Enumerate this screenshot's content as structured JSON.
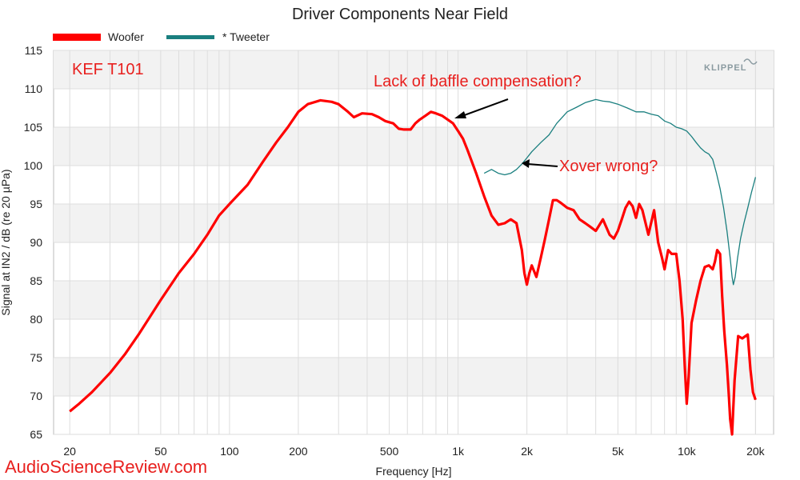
{
  "chart_data": {
    "type": "line",
    "title": "Driver Components Near Field",
    "xlabel": "Frequency [Hz]",
    "ylabel": "Signal at IN2 / dB (re 20 µPa)",
    "xscale": "log",
    "xlim": [
      17,
      24000
    ],
    "ylim": [
      65,
      115
    ],
    "xticks": [
      {
        "value": 20,
        "label": "20"
      },
      {
        "value": 50,
        "label": "50"
      },
      {
        "value": 100,
        "label": "100"
      },
      {
        "value": 200,
        "label": "200"
      },
      {
        "value": 500,
        "label": "500"
      },
      {
        "value": 1000,
        "label": "1k"
      },
      {
        "value": 2000,
        "label": "2k"
      },
      {
        "value": 5000,
        "label": "5k"
      },
      {
        "value": 10000,
        "label": "10k"
      },
      {
        "value": 20000,
        "label": "20k"
      }
    ],
    "yticks": [
      65,
      70,
      75,
      80,
      85,
      90,
      95,
      100,
      105,
      110,
      115
    ],
    "grid": true,
    "legend_position": "top-left",
    "series": [
      {
        "name": "Woofer",
        "color": "#ff0000",
        "x": [
          20,
          22,
          25,
          30,
          35,
          40,
          50,
          60,
          70,
          80,
          90,
          100,
          120,
          140,
          160,
          180,
          200,
          220,
          250,
          280,
          300,
          330,
          350,
          380,
          420,
          450,
          480,
          520,
          550,
          580,
          620,
          650,
          680,
          720,
          760,
          800,
          850,
          900,
          950,
          1000,
          1050,
          1100,
          1200,
          1300,
          1400,
          1500,
          1600,
          1700,
          1800,
          1900,
          1950,
          2000,
          2050,
          2100,
          2200,
          2300,
          2400,
          2500,
          2600,
          2700,
          2800,
          3000,
          3200,
          3400,
          3600,
          3800,
          4000,
          4300,
          4600,
          4800,
          5000,
          5200,
          5400,
          5600,
          5800,
          6000,
          6200,
          6400,
          6800,
          7200,
          7500,
          7800,
          8000,
          8300,
          8600,
          9000,
          9300,
          9600,
          9800,
          10000,
          10200,
          10500,
          11000,
          11500,
          12000,
          12500,
          13000,
          13300,
          13600,
          14000,
          14300,
          14600,
          15000,
          15300,
          15500,
          15800,
          16200,
          16800,
          17500,
          18500,
          19000,
          19500,
          20000
        ],
        "y": [
          68,
          69,
          70.5,
          73,
          75.5,
          78,
          82.5,
          86,
          88.5,
          91,
          93.5,
          95,
          97.5,
          100.5,
          103,
          105,
          107,
          108,
          108.5,
          108.3,
          108,
          107,
          106.3,
          106.8,
          106.7,
          106.3,
          105.8,
          105.5,
          104.8,
          104.7,
          104.7,
          105.5,
          106,
          106.5,
          107,
          106.8,
          106.5,
          106,
          105.5,
          104.5,
          103.5,
          102,
          99,
          96,
          93.5,
          92.3,
          92.5,
          93,
          92.5,
          89,
          86,
          84.5,
          86,
          87,
          85.5,
          88,
          90.5,
          93,
          95.5,
          95.5,
          95.2,
          94.5,
          94.2,
          93,
          92.5,
          92,
          91.5,
          93,
          91,
          90.5,
          91.5,
          93,
          94.5,
          95.3,
          94.7,
          93.2,
          95,
          94.2,
          91,
          94.2,
          90,
          88,
          86.5,
          89,
          88.5,
          88.5,
          85,
          80,
          74,
          69,
          72.5,
          79.5,
          82.5,
          85,
          86.8,
          87,
          86.5,
          87.5,
          89,
          88.5,
          83,
          78.5,
          74,
          70,
          67,
          65,
          72,
          77.8,
          77.5,
          78,
          73.5,
          70.5,
          69.5
        ]
      },
      {
        "name": "* Tweeter",
        "color": "#1a7f7f",
        "x": [
          1300,
          1400,
          1500,
          1600,
          1700,
          1800,
          1900,
          2000,
          2100,
          2300,
          2500,
          2700,
          3000,
          3300,
          3600,
          4000,
          4300,
          4600,
          5000,
          5500,
          6000,
          6500,
          7000,
          7500,
          8000,
          8500,
          9000,
          9500,
          10000,
          10500,
          11000,
          11500,
          12000,
          12500,
          13000,
          13500,
          14000,
          14500,
          15000,
          15500,
          15800,
          16000,
          16300,
          16700,
          17200,
          17800,
          18500,
          19200,
          19600,
          20000
        ],
        "y": [
          99,
          99.5,
          99,
          98.8,
          99,
          99.5,
          100.2,
          101,
          101.8,
          103,
          104,
          105.5,
          107,
          107.6,
          108.2,
          108.6,
          108.4,
          108.3,
          108,
          107.5,
          107,
          107,
          106.7,
          106.5,
          105.8,
          105.5,
          105,
          104.8,
          104.5,
          103.8,
          103,
          102.3,
          101.8,
          101.5,
          100.8,
          99,
          97,
          94.5,
          91.5,
          88,
          85.5,
          84.5,
          85.5,
          88,
          90.5,
          92.5,
          94.5,
          96.5,
          97.5,
          98.5
        ]
      }
    ],
    "annotations": [
      {
        "text": "Lack of baffle compensation?"
      },
      {
        "text": "Xover wrong?"
      }
    ],
    "model_label": "KEF T101",
    "watermark": "AudioScienceReview.com",
    "logo": "KLIPPEL"
  }
}
